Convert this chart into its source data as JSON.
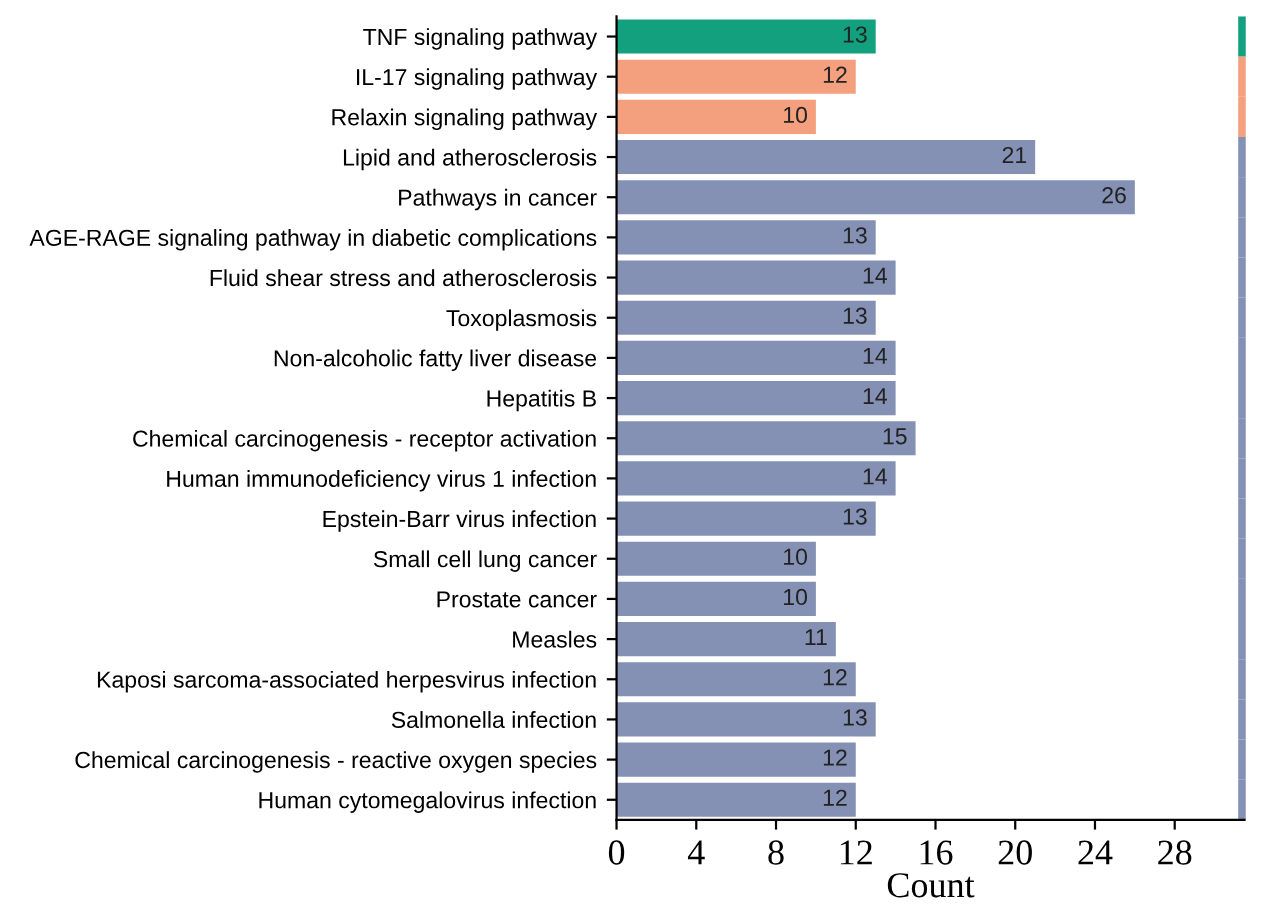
{
  "chart_data": {
    "type": "bar",
    "orientation": "horizontal",
    "xlabel": "Count",
    "categories": [
      "TNF signaling pathway",
      "IL-17 signaling pathway",
      "Relaxin signaling pathway",
      "Lipid and atherosclerosis",
      "Pathways in cancer",
      "AGE-RAGE signaling pathway in diabetic complications",
      "Fluid shear stress and atherosclerosis",
      "Toxoplasmosis",
      "Non-alcoholic fatty liver disease",
      "Hepatitis B",
      "Chemical carcinogenesis - receptor activation",
      "Human immunodeficiency virus 1 infection",
      "Epstein-Barr virus infection",
      "Small cell lung cancer",
      "Prostate cancer",
      "Measles",
      "Kaposi sarcoma-associated herpesvirus infection",
      "Salmonella infection",
      "Chemical carcinogenesis - reactive oxygen species",
      "Human cytomegalovirus infection"
    ],
    "values": [
      13,
      12,
      10,
      21,
      26,
      13,
      14,
      13,
      14,
      14,
      15,
      14,
      13,
      10,
      10,
      11,
      12,
      13,
      12,
      12
    ],
    "colors": [
      "#12a07f",
      "#f4a07f",
      "#f4a07f",
      "#8491b4",
      "#8491b4",
      "#8491b4",
      "#8491b4",
      "#8491b4",
      "#8491b4",
      "#8491b4",
      "#8491b4",
      "#8491b4",
      "#8491b4",
      "#8491b4",
      "#8491b4",
      "#8491b4",
      "#8491b4",
      "#8491b4",
      "#8491b4",
      "#8491b4"
    ],
    "xlim": [
      0,
      31.5
    ],
    "xticks": [
      0,
      4,
      8,
      12,
      16,
      20,
      24,
      28
    ],
    "data_labels": true,
    "grid": false
  }
}
